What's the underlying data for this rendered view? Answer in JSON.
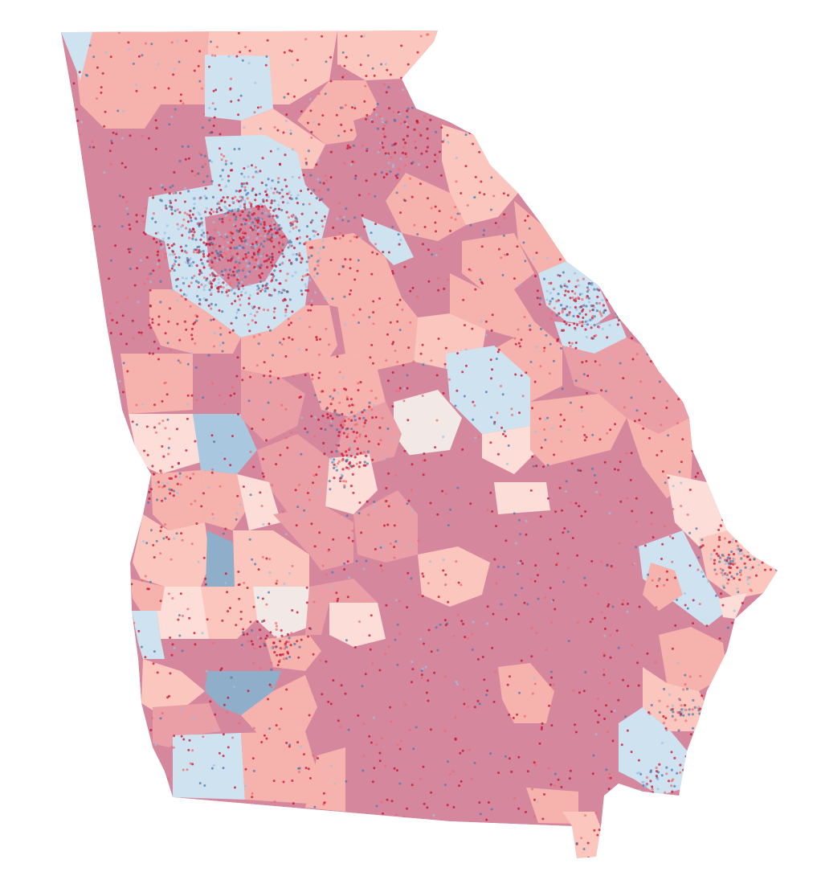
{
  "map": {
    "subject": "Georgia",
    "type": "county-level choropleth with dot overlay",
    "palette": {
      "strong_red": "#d5879e",
      "red": "#ea9ea5",
      "light_red": "#f6b3ad",
      "pale_red": "#fbc6bd",
      "faint_red": "#fcddd8",
      "neutral": "#f2e8e6",
      "light_blue": "#cfe2f0",
      "blue": "#a9c7de",
      "dark_blue": "#8eaec9"
    },
    "dot_colors": {
      "red": "#c8102e",
      "salmon": "#ef6b6b",
      "blue": "#4a78ad",
      "light_blue": "#9cc1e0"
    }
  }
}
